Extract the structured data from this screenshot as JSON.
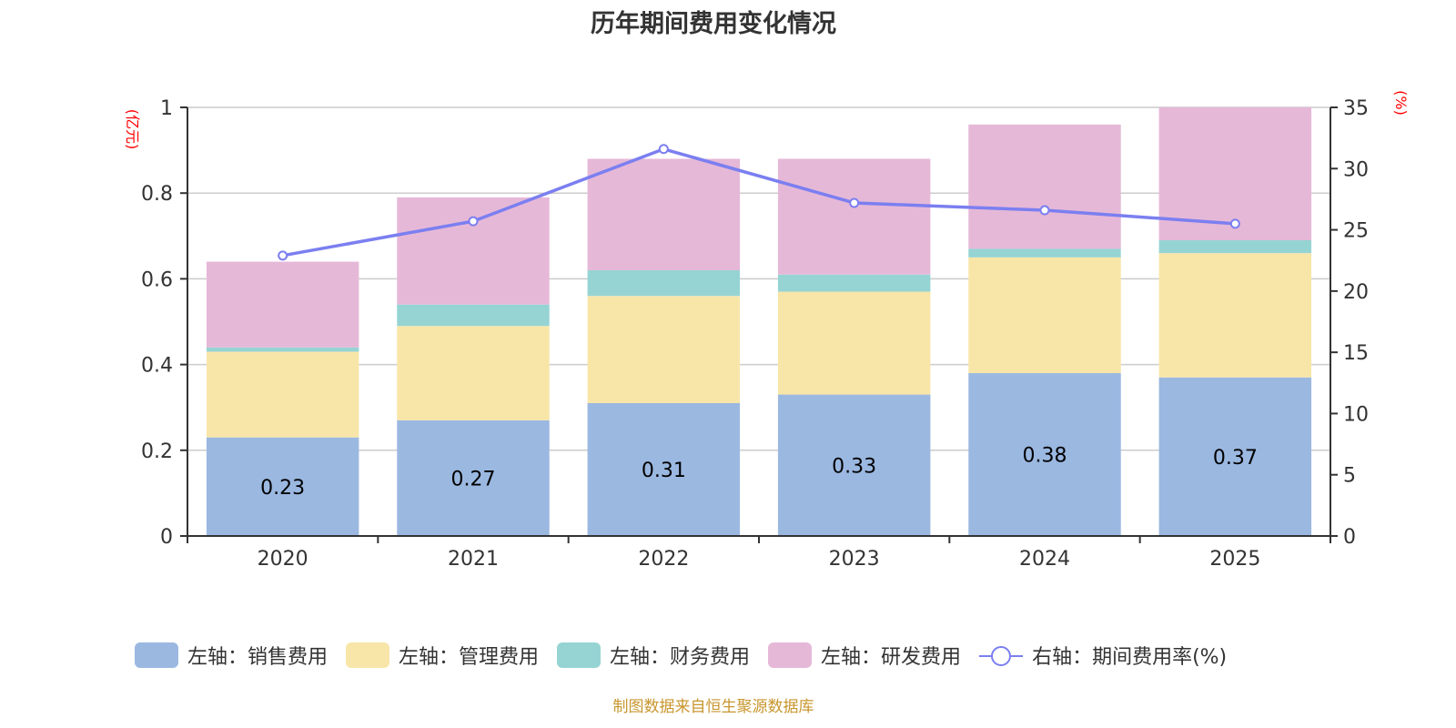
{
  "chart_data": {
    "type": "bar",
    "stacked": true,
    "title": "历年期间费用变化情况",
    "categories": [
      "2020",
      "2021",
      "2022",
      "2023",
      "2024",
      "2025"
    ],
    "left_axis": {
      "unit_label": "(亿元)",
      "range": [
        0,
        1
      ],
      "ticks": [
        "0",
        "0.2",
        "0.4",
        "0.6",
        "0.8",
        "1"
      ],
      "tick_values": [
        0,
        0.2,
        0.4,
        0.6,
        0.8,
        1
      ]
    },
    "right_axis": {
      "unit_label": "(%)",
      "range": [
        0,
        35
      ],
      "ticks": [
        "0",
        "5",
        "10",
        "15",
        "20",
        "25",
        "30",
        "35"
      ],
      "tick_values": [
        0,
        5,
        10,
        15,
        20,
        25,
        30,
        35
      ]
    },
    "grid": true,
    "legend_position": "bottom",
    "series": [
      {
        "name": "左轴：销售费用",
        "type": "bar",
        "axis": "left",
        "color": "#9bb8e1",
        "values": [
          0.23,
          0.27,
          0.31,
          0.33,
          0.38,
          0.37
        ],
        "show_labels": true,
        "labels": [
          "0.23",
          "0.27",
          "0.31",
          "0.33",
          "0.38",
          "0.37"
        ]
      },
      {
        "name": "左轴：管理费用",
        "type": "bar",
        "axis": "left",
        "color": "#f8e6a9",
        "values": [
          0.2,
          0.22,
          0.25,
          0.24,
          0.27,
          0.29
        ]
      },
      {
        "name": "左轴：财务费用",
        "type": "bar",
        "axis": "left",
        "color": "#96d4d4",
        "values": [
          0.01,
          0.05,
          0.06,
          0.04,
          0.02,
          0.03
        ]
      },
      {
        "name": "左轴：研发费用",
        "type": "bar",
        "axis": "left",
        "color": "#e6b8d8",
        "values": [
          0.2,
          0.25,
          0.26,
          0.27,
          0.29,
          0.31
        ]
      },
      {
        "name": "右轴：期间费用率(%)",
        "type": "line",
        "axis": "right",
        "color": "#7b7ff0",
        "values": [
          22.9,
          25.7,
          31.6,
          27.2,
          26.6,
          25.5
        ]
      }
    ]
  },
  "title": "历年期间费用变化情况",
  "legend": [
    {
      "label": "左轴：销售费用",
      "color": "#9bb8e1",
      "kind": "bar"
    },
    {
      "label": "左轴：管理费用",
      "color": "#f8e6a9",
      "kind": "bar"
    },
    {
      "label": "左轴：财务费用",
      "color": "#96d4d4",
      "kind": "bar"
    },
    {
      "label": "左轴：研发费用",
      "color": "#e6b8d8",
      "kind": "bar"
    },
    {
      "label": "右轴：期间费用率(%)",
      "color": "#7b7ff0",
      "kind": "line"
    }
  ],
  "source_note": "制图数据来自恒生聚源数据库",
  "colors": {
    "axis": "#333333",
    "grid": "#cccccc",
    "unit_label": "#ff0000",
    "source_note": "#c8962e"
  }
}
